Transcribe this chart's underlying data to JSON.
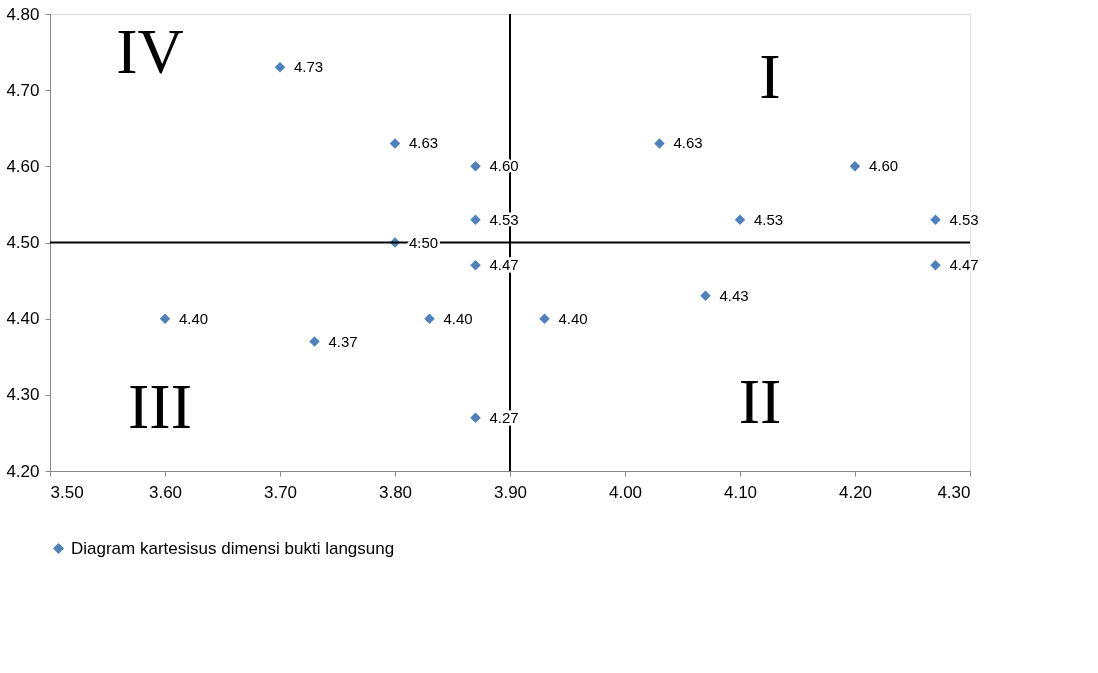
{
  "chart_data": {
    "type": "scatter",
    "x": [
      3.7,
      3.8,
      3.87,
      3.87,
      3.8,
      3.87,
      3.6,
      3.73,
      3.83,
      3.93,
      3.87,
      4.03,
      4.2,
      4.1,
      4.27,
      4.27,
      4.07
    ],
    "series": [
      {
        "name": "Diagram kartesisus dimensi bukti langsung",
        "color": "#4f81bd",
        "values": [
          4.73,
          4.63,
          4.6,
          4.53,
          4.5,
          4.47,
          4.4,
          4.37,
          4.4,
          4.4,
          4.27,
          4.63,
          4.6,
          4.53,
          4.53,
          4.47,
          4.43
        ],
        "value_labels": [
          "4.73",
          "4.63",
          "4.60",
          "4.53",
          "4.50",
          "4.47",
          "4.40",
          "4.37",
          "4.40",
          "4.40",
          "4.27",
          "4.63",
          "4.60",
          "4.53",
          "4.53",
          "4.47",
          "4.43"
        ]
      }
    ],
    "xlim": [
      3.5,
      4.3
    ],
    "xticks": [
      {
        "value": 3.5,
        "label": "3.50"
      },
      {
        "value": 3.6,
        "label": "3.60"
      },
      {
        "value": 3.7,
        "label": "3.70"
      },
      {
        "value": 3.8,
        "label": "3.80"
      },
      {
        "value": 3.9,
        "label": "3.90"
      },
      {
        "value": 4.0,
        "label": "4.00"
      },
      {
        "value": 4.1,
        "label": "4.10"
      },
      {
        "value": 4.2,
        "label": "4.20"
      },
      {
        "value": 4.3,
        "label": "4.30"
      }
    ],
    "ylim": [
      4.2,
      4.8
    ],
    "yticks": [
      {
        "value": 4.2,
        "label": "4.20"
      },
      {
        "value": 4.3,
        "label": "4.30"
      },
      {
        "value": 4.4,
        "label": "4.40"
      },
      {
        "value": 4.5,
        "label": "4.50"
      },
      {
        "value": 4.6,
        "label": "4.60"
      },
      {
        "value": 4.7,
        "label": "4.70"
      },
      {
        "value": 4.8,
        "label": "4.80"
      }
    ],
    "ref_lines": [
      {
        "axis": "x",
        "value": 3.9,
        "color": "#000000"
      },
      {
        "axis": "y",
        "value": 4.5,
        "color": "#000000"
      }
    ],
    "annotations": [
      "IV",
      "I",
      "III",
      "II"
    ],
    "marker": "diamond",
    "grid": false,
    "legend": "bottom"
  }
}
